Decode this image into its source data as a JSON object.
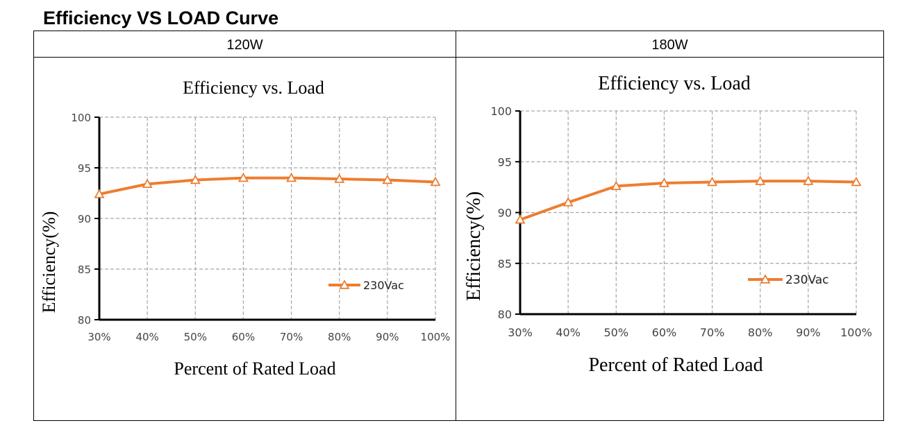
{
  "page": {
    "title": "Efficiency VS LOAD Curve"
  },
  "columns": [
    "120W",
    "180W"
  ],
  "chart_data": [
    {
      "type": "line",
      "panel": "120W",
      "title": "Efficiency vs. Load",
      "xlabel": "Percent of Rated Load",
      "ylabel": "Efficiency(%)",
      "categories": [
        "30%",
        "40%",
        "50%",
        "60%",
        "70%",
        "80%",
        "90%",
        "100%"
      ],
      "yticks": [
        "80",
        "85",
        "90",
        "95",
        "100"
      ],
      "ylim": [
        80,
        100
      ],
      "grid": true,
      "legend_position": "right",
      "series": [
        {
          "name": "230Vac",
          "color": "#ed7d31",
          "marker": "triangle",
          "values": [
            92.4,
            93.4,
            93.8,
            94.0,
            94.0,
            93.9,
            93.8,
            93.6
          ]
        }
      ]
    },
    {
      "type": "line",
      "panel": "180W",
      "title": "Efficiency vs. Load",
      "xlabel": "Percent of Rated Load",
      "ylabel": "Efficiency(%)",
      "categories": [
        "30%",
        "40%",
        "50%",
        "60%",
        "70%",
        "80%",
        "90%",
        "100%"
      ],
      "yticks": [
        "80",
        "85",
        "90",
        "95",
        "100"
      ],
      "ylim": [
        80,
        100
      ],
      "grid": true,
      "legend_position": "right",
      "series": [
        {
          "name": "230Vac",
          "color": "#ed7d31",
          "marker": "triangle",
          "values": [
            89.3,
            91.0,
            92.6,
            92.9,
            93.0,
            93.1,
            93.1,
            93.0
          ]
        }
      ]
    }
  ]
}
